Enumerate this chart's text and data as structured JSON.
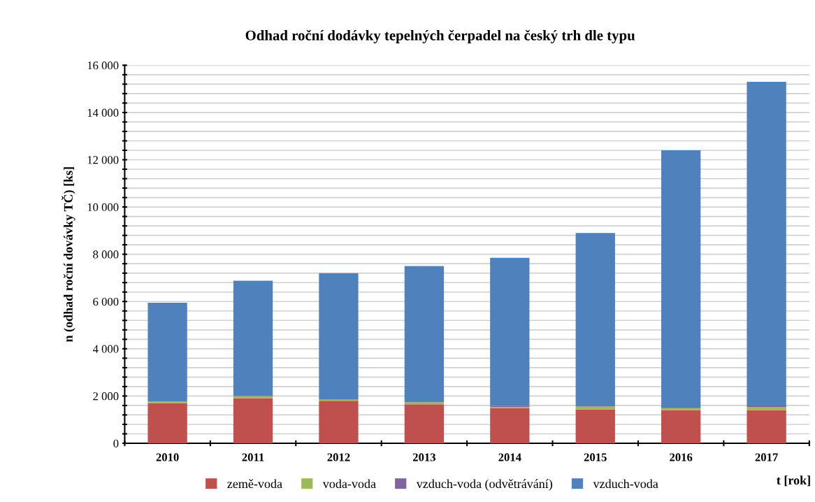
{
  "chart_data": {
    "type": "bar",
    "stacked": true,
    "title": "Odhad roční dodávky tepelných čerpadel na český trh dle typu",
    "xlabel": "t [rok]",
    "ylabel": "n (odhad roční dovávky TČ) [ks]",
    "categories": [
      "2010",
      "2011",
      "2012",
      "2013",
      "2014",
      "2015",
      "2016",
      "2017"
    ],
    "series": [
      {
        "name": "země-voda",
        "color": "#c0504d",
        "values": [
          1700,
          1910,
          1800,
          1650,
          1490,
          1430,
          1400,
          1400
        ]
      },
      {
        "name": "voda-voda",
        "color": "#9bbb59",
        "values": [
          60,
          80,
          40,
          80,
          50,
          120,
          90,
          140
        ]
      },
      {
        "name": "vzduch-voda (odvětrávání)",
        "color": "#8064a2",
        "values": [
          10,
          10,
          20,
          10,
          45,
          20,
          50,
          60
        ]
      },
      {
        "name": "vzduch-voda",
        "color": "#4f81bd",
        "values": [
          4180,
          4880,
          5340,
          5760,
          6265,
          7330,
          10860,
          13700
        ]
      }
    ],
    "ylim": [
      0,
      16000
    ],
    "yticks": [
      {
        "value": 0,
        "label": "0"
      },
      {
        "value": 400,
        "label": null
      },
      {
        "value": 800,
        "label": null
      },
      {
        "value": 1200,
        "label": null
      },
      {
        "value": 1600,
        "label": null
      },
      {
        "value": 2000,
        "label": "2 000"
      },
      {
        "value": 2400,
        "label": null
      },
      {
        "value": 2800,
        "label": null
      },
      {
        "value": 3200,
        "label": null
      },
      {
        "value": 3600,
        "label": null
      },
      {
        "value": 4000,
        "label": "4 000"
      },
      {
        "value": 4400,
        "label": null
      },
      {
        "value": 4800,
        "label": null
      },
      {
        "value": 5200,
        "label": null
      },
      {
        "value": 5600,
        "label": null
      },
      {
        "value": 6000,
        "label": "6 000"
      },
      {
        "value": 6400,
        "label": null
      },
      {
        "value": 6800,
        "label": null
      },
      {
        "value": 7200,
        "label": null
      },
      {
        "value": 7600,
        "label": null
      },
      {
        "value": 8000,
        "label": "8 000"
      },
      {
        "value": 8400,
        "label": null
      },
      {
        "value": 8800,
        "label": null
      },
      {
        "value": 9200,
        "label": null
      },
      {
        "value": 9600,
        "label": null
      },
      {
        "value": 10000,
        "label": "10 000"
      },
      {
        "value": 10400,
        "label": null
      },
      {
        "value": 10800,
        "label": null
      },
      {
        "value": 11200,
        "label": null
      },
      {
        "value": 11600,
        "label": null
      },
      {
        "value": 12000,
        "label": "12 000"
      },
      {
        "value": 12400,
        "label": null
      },
      {
        "value": 12800,
        "label": null
      },
      {
        "value": 13200,
        "label": null
      },
      {
        "value": 13600,
        "label": null
      },
      {
        "value": 14000,
        "label": "14 000"
      },
      {
        "value": 14400,
        "label": null
      },
      {
        "value": 14800,
        "label": null
      },
      {
        "value": 15200,
        "label": null
      },
      {
        "value": 15600,
        "label": null
      },
      {
        "value": 16000,
        "label": "16 000"
      }
    ],
    "grid": "y",
    "legend": "bottom"
  }
}
